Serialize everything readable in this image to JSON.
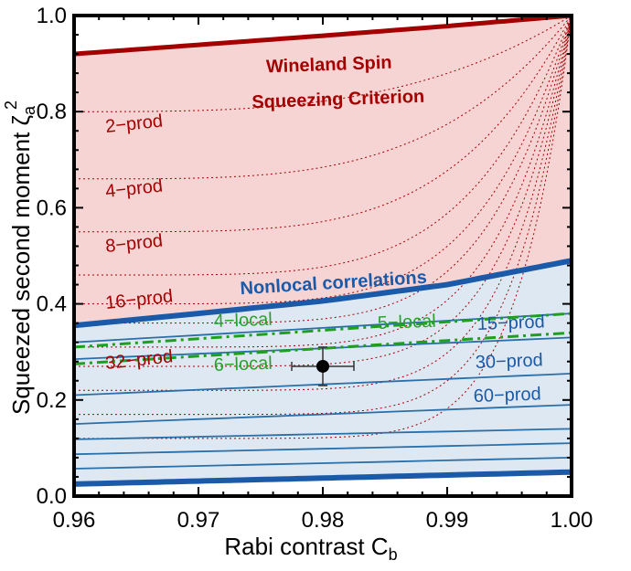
{
  "chart_data": {
    "type": "line",
    "xlabel": "Rabi contrast C",
    "xlabel_sub": "b",
    "ylabel": "Squeezed second moment ζ",
    "ylabel_sub": "a",
    "ylabel_sup": "2",
    "xlim": [
      0.96,
      1.0
    ],
    "ylim": [
      0.0,
      1.0
    ],
    "x_ticks": [
      "0.96",
      "0.97",
      "0.98",
      "0.99",
      "1.00"
    ],
    "y_ticks": [
      "0.0",
      "0.2",
      "0.4",
      "0.6",
      "0.8",
      "1.0"
    ],
    "grid": false,
    "regions": [
      {
        "name": "Wineland Spin Squeezing Criterion",
        "color": "#f7d4d4",
        "between": [
          "nonlocal",
          "wineland"
        ]
      },
      {
        "name": "Nonlocal correlations",
        "color": "#dde8f3",
        "between": [
          "bottom_bound",
          "nonlocal"
        ]
      }
    ],
    "boundary_curves": {
      "wineland": {
        "color": "#a40000",
        "x": [
          0.96,
          0.97,
          0.98,
          0.99,
          1.0
        ],
        "y": [
          0.92,
          0.939,
          0.958,
          0.978,
          1.0
        ]
      },
      "nonlocal": {
        "color": "#1a5aa8",
        "x": [
          0.96,
          0.97,
          0.98,
          0.99,
          1.0
        ],
        "y": [
          0.355,
          0.38,
          0.406,
          0.44,
          0.49
        ]
      },
      "bottom_bound": {
        "color": "#1a5aa8",
        "x": [
          0.96,
          1.0
        ],
        "y": [
          0.025,
          0.05
        ]
      }
    },
    "k_producible_dotted_start_y": [
      0.8,
      0.66,
      0.55,
      0.46,
      0.4,
      0.36,
      0.31,
      0.27,
      0.22,
      0.17,
      0.12
    ],
    "blue_solid_lines": [
      {
        "x": [
          0.96,
          1.0
        ],
        "y": [
          0.32,
          0.38
        ]
      },
      {
        "x": [
          0.96,
          1.0
        ],
        "y": [
          0.285,
          0.33
        ]
      },
      {
        "x": [
          0.96,
          1.0
        ],
        "y": [
          0.21,
          0.255
        ]
      },
      {
        "x": [
          0.96,
          1.0
        ],
        "y": [
          0.15,
          0.19
        ]
      },
      {
        "x": [
          0.96,
          1.0
        ],
        "y": [
          0.118,
          0.14
        ]
      },
      {
        "x": [
          0.96,
          1.0
        ],
        "y": [
          0.087,
          0.11
        ]
      },
      {
        "x": [
          0.96,
          1.0
        ],
        "y": [
          0.057,
          0.08
        ]
      }
    ],
    "green_dashdot_lines": [
      {
        "x": [
          0.96,
          1.0
        ],
        "y": [
          0.31,
          0.38
        ]
      },
      {
        "x": [
          0.96,
          1.0
        ],
        "y": [
          0.275,
          0.34
        ]
      }
    ],
    "data_point": {
      "x": 0.98,
      "y": 0.27,
      "x_err": 0.0025,
      "y_err": 0.04
    },
    "annotations": {
      "wineland_line1": "Wineland Spin",
      "wineland_line2": "Squeezing Criterion",
      "nonlocal": "Nonlocal correlations",
      "prod_2": "2−prod",
      "prod_4": "4−prod",
      "prod_8": "8−prod",
      "prod_16": "16−prod",
      "prod_32": "32−prod",
      "prod_15": "15−prod",
      "prod_30": "30−prod",
      "prod_60": "60−prod",
      "local_4": "4−local",
      "local_5": "5−local",
      "local_6": "6−local"
    }
  }
}
